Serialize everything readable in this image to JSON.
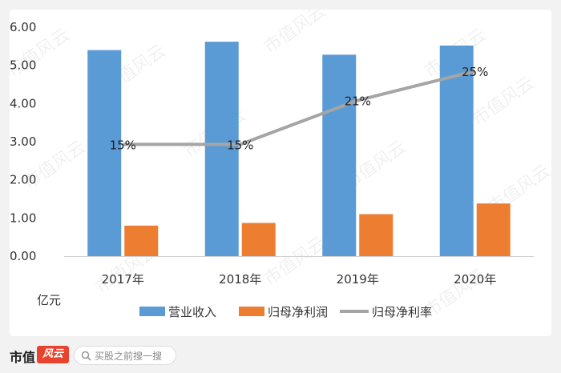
{
  "chart_data": {
    "type": "bar",
    "categories": [
      "2017年",
      "2018年",
      "2019年",
      "2020年"
    ],
    "unit_label": "亿元",
    "ylim": [
      0,
      6
    ],
    "yticks": [
      "0.00",
      "1.00",
      "2.00",
      "3.00",
      "4.00",
      "5.00",
      "6.00"
    ],
    "series": [
      {
        "name": "营业收入",
        "type": "bar",
        "color": "#5b9bd5",
        "values": [
          5.4,
          5.62,
          5.28,
          5.52
        ]
      },
      {
        "name": "归母净利润",
        "type": "bar",
        "color": "#ed7d31",
        "values": [
          0.8,
          0.87,
          1.1,
          1.38
        ]
      },
      {
        "name": "归母净利率",
        "type": "line",
        "color": "#a5a5a5",
        "values": [
          15,
          15,
          21,
          25
        ],
        "labels": [
          "15%",
          "15%",
          "21%",
          "25%"
        ]
      }
    ],
    "legend_position": "bottom",
    "grid": false
  },
  "watermark": "市值风云",
  "footer": {
    "brand": "市值",
    "logo": "风云",
    "search_placeholder": "买股之前搜一搜"
  }
}
